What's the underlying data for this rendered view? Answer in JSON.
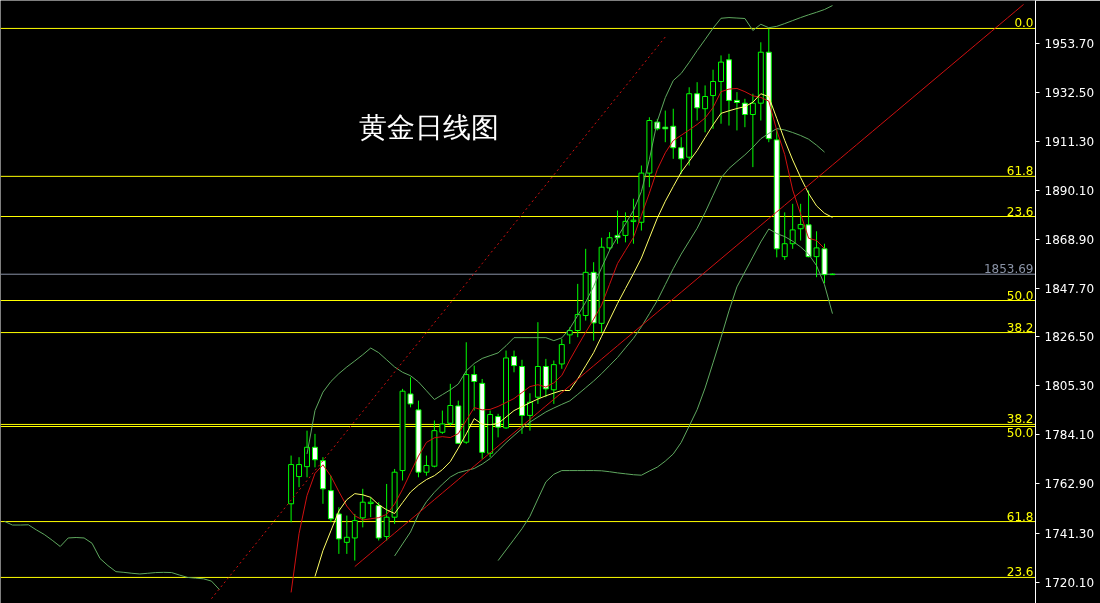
{
  "chart_data": {
    "type": "candlestick",
    "title": "黄金日线图",
    "color": "#00ff00",
    "categories": [
      null,
      null,
      null,
      null,
      null,
      null,
      null,
      null,
      null,
      null,
      null,
      null,
      null,
      null,
      null,
      null,
      null,
      null,
      null,
      null,
      null,
      null,
      null,
      null,
      null,
      null,
      null,
      null,
      null,
      null,
      null,
      null,
      null,
      null,
      null,
      null,
      null,
      null,
      null,
      null,
      null,
      null,
      null,
      null,
      null,
      null,
      null,
      null,
      null,
      null,
      null,
      null,
      null,
      null,
      null,
      null,
      null,
      null,
      null,
      null,
      null,
      null,
      null,
      null,
      null,
      null,
      null,
      null,
      null,
      null,
      null,
      null,
      null,
      null,
      null,
      null,
      null,
      null,
      null,
      null,
      null,
      null,
      null,
      null,
      null,
      null,
      null,
      null,
      null,
      null,
      null,
      null,
      null,
      null,
      null,
      null,
      null,
      null,
      null,
      null,
      null,
      null,
      null,
      null,
      null,
      null,
      null,
      null,
      null,
      null,
      null,
      null,
      null,
      null,
      null,
      null,
      null,
      null,
      null,
      null,
      null,
      null,
      null,
      null,
      null,
      null,
      null,
      null,
      null,
      null
    ],
    "ohlc": [
      null,
      null,
      null,
      null,
      null,
      null,
      null,
      null,
      null,
      null,
      null,
      null,
      null,
      null,
      null,
      null,
      null,
      null,
      null,
      null,
      null,
      null,
      null,
      null,
      null,
      null,
      null,
      null,
      null,
      null,
      null,
      null,
      null,
      null,
      null,
      null,
      [
        1754.2,
        1775.1,
        1746.2,
        1771.2
      ],
      [
        1766.0,
        1774.4,
        1761.4,
        1771.2
      ],
      [
        1770.3,
        1785.9,
        1765.7,
        1778.7
      ],
      [
        1778.7,
        1784.5,
        1770.0,
        1773.3
      ],
      [
        1772.9,
        1774.4,
        1754.2,
        1760.7
      ],
      [
        1759.9,
        1766.4,
        1746.2,
        1747.7
      ],
      [
        1749.8,
        1752.7,
        1732.5,
        1739.0
      ],
      [
        1737.5,
        1749.1,
        1732.5,
        1739.7
      ],
      [
        1739.4,
        1749.8,
        1729.6,
        1746.9
      ],
      [
        1748.1,
        1760.7,
        1744.0,
        1754.9
      ],
      [
        1754.3,
        1757.0,
        1748.4,
        1754.9
      ],
      [
        1753.4,
        1754.9,
        1738.3,
        1739.4
      ],
      [
        1740.0,
        1762.8,
        1738.3,
        1748.4
      ],
      [
        1748.4,
        1769.3,
        1745.5,
        1767.9
      ],
      [
        1768.6,
        1804.0,
        1764.3,
        1803.0
      ],
      [
        1801.8,
        1809.0,
        1796.0,
        1797.5
      ],
      [
        1794.9,
        1798.9,
        1765.7,
        1767.9
      ],
      [
        1767.9,
        1775.1,
        1766.4,
        1770.8
      ],
      [
        1770.5,
        1790.3,
        1770.0,
        1785.9
      ],
      [
        1785.2,
        1794.6,
        1784.5,
        1788.8
      ],
      [
        1789.1,
        1806.2,
        1788.1,
        1796.8
      ],
      [
        1796.6,
        1798.9,
        1780.2,
        1780.4
      ],
      [
        1780.9,
        1824.2,
        1780.2,
        1810.2
      ],
      [
        1810.2,
        1814.1,
        1794.6,
        1807.2
      ],
      [
        1806.4,
        1808.3,
        1773.7,
        1776.5
      ],
      [
        1776.1,
        1794.6,
        1774.4,
        1792.9
      ],
      [
        1792.0,
        1793.2,
        1783.0,
        1787.4
      ],
      [
        1787.1,
        1820.6,
        1786.7,
        1817.4
      ],
      [
        1818.0,
        1820.6,
        1811.2,
        1814.1
      ],
      [
        1813.7,
        1816.6,
        1784.5,
        1792.5
      ],
      [
        1792.5,
        1802.1,
        1785.9,
        1798.2
      ],
      [
        1800.4,
        1832.9,
        1797.5,
        1813.7
      ],
      [
        1813.7,
        1817.0,
        1800.4,
        1804.0
      ],
      [
        1803.6,
        1816.3,
        1797.5,
        1814.5
      ],
      [
        1814.8,
        1825.7,
        1812.7,
        1823.2
      ],
      [
        1827.4,
        1830.7,
        1823.5,
        1829.3
      ],
      [
        1829.3,
        1849.5,
        1826.4,
        1836.2
      ],
      [
        1835.8,
        1864.7,
        1833.6,
        1854.5
      ],
      [
        1854.5,
        1858.9,
        1824.9,
        1832.6
      ],
      [
        1832.4,
        1869.5,
        1828.5,
        1865.4
      ],
      [
        1865.1,
        1871.9,
        1863.9,
        1869.5
      ],
      [
        1870.5,
        1881.3,
        1866.9,
        1869.5
      ],
      [
        1870.5,
        1880.5,
        1867.5,
        1876.6
      ],
      [
        1876.5,
        1886.4,
        1866.9,
        1877.1
      ],
      [
        1876.2,
        1900.8,
        1872.6,
        1897.5
      ],
      [
        1897.5,
        1921.7,
        1891.4,
        1920.3
      ],
      [
        1919.6,
        1921.0,
        1916.0,
        1916.7
      ],
      [
        1917.4,
        1924.6,
        1910.9,
        1916.7
      ],
      [
        1917.8,
        1925.4,
        1903.7,
        1908.5
      ],
      [
        1908.5,
        1913.1,
        1897.2,
        1903.7
      ],
      [
        1904.4,
        1934.7,
        1900.8,
        1931.9
      ],
      [
        1931.9,
        1936.9,
        1920.3,
        1925.8
      ],
      [
        1925.4,
        1935.5,
        1915.2,
        1930.7
      ],
      [
        1931.1,
        1942.3,
        1916.7,
        1937.2
      ],
      [
        1937.2,
        1948.5,
        1918.9,
        1945.6
      ],
      [
        1946.6,
        1949.2,
        1918.1,
        1929.0
      ],
      [
        1929.0,
        1932.6,
        1916.0,
        1928.1
      ],
      [
        1927.8,
        1929.7,
        1917.4,
        1922.9
      ],
      [
        1922.9,
        1931.9,
        1900.1,
        1927.8
      ],
      [
        1927.8,
        1954.2,
        1920.3,
        1949.9
      ],
      [
        1949.9,
        1960.0,
        1910.9,
        1912.4
      ],
      [
        1911.9,
        1916.8,
        1861.0,
        1864.7
      ],
      [
        1861.3,
        1880.5,
        1859.9,
        1866.9
      ],
      [
        1866.9,
        1884.2,
        1864.7,
        1872.9
      ],
      [
        1873.4,
        1884.2,
        1868.3,
        1875.2
      ],
      [
        1875.1,
        1890.0,
        1861.0,
        1861.3
      ],
      [
        1861.3,
        1872.3,
        1852.4,
        1865.1
      ],
      [
        1864.7,
        1866.9,
        1849.8,
        1853.5
      ],
      [
        1853.5,
        1854.0,
        1853.4,
        1853.69
      ],
      null,
      null,
      null,
      null,
      null,
      null,
      null,
      null,
      null,
      null,
      null,
      null,
      null,
      null,
      null,
      null,
      null,
      null,
      null,
      null,
      null,
      null,
      null,
      null,
      null
    ],
    "series": [
      {
        "type": "line",
        "color": "#5fa85f",
        "values": [
          1746.6,
          1745.0,
          1745.0,
          1745.1,
          1742.9,
          1740.9,
          1738.4,
          1735.7,
          1739.4,
          1739.6,
          1739.4,
          1737.1,
          1730.5,
          1727.4,
          1724.8,
          1724.5,
          1724.1,
          1723.8,
          1724.1,
          1724.4,
          1724.5,
          1724.4,
          1723.3,
          1722.3,
          1722.0,
          1721.7,
          1720.7,
          1717.0,
          null,
          null,
          null,
          null,
          null,
          null,
          null,
          null,
          null,
          null,
          1775.8,
          1794.6,
          1802.6,
          1807.2,
          1810.6,
          1813.5,
          1816.1,
          1818.8,
          1821.7,
          1819.7,
          1816.6,
          1813.5,
          1811.2,
          1809.7,
          1807.0,
          1803.2,
          1799.4,
          1801.5,
          1803.6,
          1806.1,
          1811.8,
          1815.0,
          1817.2,
          1818.4,
          1819.6,
          1822.7,
          1826.2,
          1826.2,
          1826.2,
          1826.2,
          1826.2,
          1824.9,
          1826.1,
          1830.1,
          1835.8,
          1841.6,
          1848.4,
          1856.5,
          1864.0,
          1869.8,
          1875.5,
          1881.3,
          1889.5,
          1903.4,
          1920.0,
          1930.2,
          1937.6,
          1940.7,
          1945.5,
          1950.6,
          1955.4,
          1960.3,
          1964.6,
          1964.9,
          1964.7,
          1964.5,
          1959.3,
          1962.0,
          1960.5,
          1961.1,
          1962.3,
          1963.6,
          1964.9,
          1966.1,
          1967.2,
          1968.4,
          1970.1,
          null,
          null,
          null,
          null,
          null,
          null,
          null,
          null,
          null,
          null,
          null,
          null,
          null,
          null,
          null,
          null,
          null,
          null,
          null,
          null,
          null,
          null,
          null,
          null,
          null
        ]
      },
      {
        "type": "line",
        "color": "#5fa85f",
        "values": [
          null,
          null,
          null,
          null,
          null,
          null,
          null,
          null,
          null,
          null,
          null,
          null,
          null,
          null,
          null,
          null,
          null,
          null,
          null,
          null,
          null,
          null,
          null,
          null,
          null,
          null,
          null,
          null,
          null,
          null,
          null,
          null,
          null,
          null,
          null,
          null,
          null,
          null,
          null,
          null,
          null,
          null,
          null,
          null,
          null,
          null,
          null,
          null,
          null,
          1731.6,
          1736.8,
          1742.0,
          1749.6,
          1755.1,
          1759.2,
          1762.7,
          1765.8,
          1767.7,
          1768.6,
          1769.5,
          1771.4,
          1773.8,
          1777.3,
          1780.7,
          1783.8,
          1786.8,
          1789.6,
          1791.8,
          1794.0,
          1795.7,
          1797.3,
          1798.8,
          1801.6,
          1804.5,
          1807.4,
          1810.6,
          1814.1,
          1817.6,
          1821.8,
          1825.9,
          1830.9,
          1836.6,
          1842.3,
          1849.2,
          1856.1,
          1862.4,
          1868.0,
          1873.6,
          1880.4,
          1887.9,
          1895.4,
          1899.5,
          1902.5,
          1905.4,
          1908.7,
          1912.4,
          1914.7,
          1916.8,
          1916.2,
          1915.1,
          1913.8,
          1912.2,
          1909.6,
          1906.6,
          null,
          null,
          null,
          null,
          null,
          null,
          null,
          null,
          null,
          null,
          null,
          null,
          null,
          null,
          null,
          null,
          null,
          null,
          null,
          null,
          null,
          null,
          null,
          null,
          null,
          null
        ]
      },
      {
        "type": "line",
        "color": "#5fa85f",
        "values": [
          null,
          null,
          null,
          null,
          null,
          null,
          null,
          null,
          null,
          null,
          null,
          null,
          null,
          null,
          null,
          null,
          null,
          null,
          null,
          null,
          null,
          null,
          null,
          null,
          null,
          null,
          null,
          null,
          null,
          null,
          null,
          null,
          null,
          null,
          null,
          null,
          null,
          null,
          null,
          null,
          null,
          null,
          null,
          null,
          null,
          null,
          null,
          null,
          null,
          null,
          null,
          null,
          null,
          null,
          null,
          null,
          null,
          null,
          null,
          null,
          null,
          null,
          1729.6,
          1734.2,
          1738.8,
          1743.4,
          1748.8,
          1756.3,
          1763.7,
          1767.0,
          1768.6,
          1768.6,
          1768.6,
          1768.6,
          1768.6,
          1768.5,
          1768.1,
          1767.6,
          1767.2,
          1766.8,
          1766.6,
          1768.4,
          1770.1,
          1772.7,
          1775.8,
          1780.8,
          1787.9,
          1795.0,
          1804.4,
          1815.3,
          1826.3,
          1837.8,
          1848.2,
          1854.7,
          1861.2,
          1867.7,
          1873.3,
          1871.3,
          1870.0,
          1868.0,
          1865.5,
          1862.4,
          1857.4,
          1849.1,
          1836.6,
          null,
          null,
          null,
          null,
          null,
          null,
          null,
          null,
          null,
          null,
          null,
          null,
          null,
          null,
          null,
          null,
          null,
          null,
          null,
          null,
          null,
          null,
          null,
          null,
          null
        ]
      },
      {
        "type": "line",
        "color": "#d01010",
        "values": [
          null,
          null,
          null,
          null,
          null,
          null,
          null,
          null,
          null,
          null,
          null,
          null,
          null,
          null,
          null,
          null,
          null,
          null,
          null,
          null,
          null,
          null,
          null,
          null,
          null,
          null,
          null,
          null,
          null,
          null,
          null,
          null,
          null,
          null,
          null,
          null,
          1715.8,
          1741.3,
          1757.8,
          1767.4,
          1771.1,
          1766.2,
          1759.5,
          1753.2,
          1749.0,
          1747.2,
          1747.7,
          1748.2,
          1749.6,
          1754.1,
          1760.5,
          1767.7,
          1774.9,
          1780.8,
          1782.8,
          1783.3,
          1782.9,
          1784.6,
          1790.3,
          1795.9,
          1794.9,
          1795.1,
          1796.4,
          1798.1,
          1799.8,
          1802.4,
          1805.0,
          1805.8,
          1804.8,
          1806.6,
          1809.8,
          1816.5,
          1822.6,
          1828.5,
          1834.2,
          1840.3,
          1849.3,
          1858.3,
          1864.0,
          1869.6,
          1879.2,
          1888.8,
          1899.1,
          1906.3,
          1911.6,
          1913.9,
          1916.2,
          1918.6,
          1921.4,
          1925.9,
          1932.8,
          1933.9,
          1934.2,
          1932.8,
          1931.0,
          1930.3,
          1928.7,
          1916.0,
          1905.6,
          1890.2,
          1879.8,
          1869.3,
          1868.3,
          1864.8,
          null,
          null,
          null,
          null,
          null,
          null,
          null,
          null,
          null,
          null,
          null,
          null,
          null,
          null,
          null,
          null,
          null,
          null,
          null,
          null,
          null,
          null,
          null,
          null,
          null,
          null
        ]
      },
      {
        "type": "line",
        "color": "#ffff66",
        "values": [
          null,
          null,
          null,
          null,
          null,
          null,
          null,
          null,
          null,
          null,
          null,
          null,
          null,
          null,
          null,
          null,
          null,
          null,
          null,
          null,
          null,
          null,
          null,
          null,
          null,
          null,
          null,
          null,
          null,
          null,
          null,
          null,
          null,
          null,
          null,
          null,
          null,
          null,
          null,
          1722.7,
          1733.9,
          1742.5,
          1751.1,
          1756.0,
          1758.6,
          1758.1,
          1757.0,
          1753.8,
          1751.6,
          1750.0,
          1754.7,
          1759.3,
          1762.3,
          1764.7,
          1766.4,
          1769.0,
          1772.5,
          1778.3,
          1784.5,
          1791.1,
          1788.7,
          1788.5,
          1789.0,
          1791.8,
          1794.6,
          1796.3,
          1798.0,
          1799.6,
          1801.0,
          1802.2,
          1803.3,
          1803.3,
          1808.3,
          1814.0,
          1819.7,
          1826.8,
          1833.9,
          1841.0,
          1847.5,
          1853.9,
          1860.7,
          1869.4,
          1878.0,
          1885.3,
          1891.7,
          1897.9,
          1902.6,
          1907.3,
          1912.9,
          1918.4,
          1923.4,
          1924.5,
          1925.5,
          1926.3,
          1928.2,
          1931.9,
          1930.6,
          1921.2,
          1911.7,
          1903.2,
          1895.6,
          1888.7,
          1883.3,
          1880.1,
          1878.3,
          null,
          null,
          null,
          null,
          null,
          null,
          null,
          null,
          null,
          null,
          null,
          null,
          null,
          null,
          null,
          null,
          null,
          null,
          null,
          null,
          null,
          null,
          null,
          null,
          null
        ]
      },
      {
        "type": "line",
        "color": "#d01010",
        "values": [
          null,
          null,
          null,
          null,
          null,
          null,
          null,
          null,
          null,
          null,
          null,
          null,
          null,
          null,
          null,
          null,
          null,
          null,
          null,
          null,
          null,
          null,
          null,
          null,
          null,
          null,
          null,
          null,
          null,
          null,
          null,
          null,
          null,
          null,
          null,
          null,
          null,
          null,
          null,
          null,
          null,
          null,
          null,
          null,
          1727.0,
          1729.9,
          1732.8,
          1735.7,
          1738.6,
          1741.5,
          1744.4,
          1747.3,
          1750.2,
          1753.1,
          1756.0,
          1758.9,
          1761.8,
          1764.7,
          1767.6,
          1770.5,
          1773.4,
          1776.3,
          1779.2,
          1782.1,
          1785.0,
          1787.9,
          1790.8,
          1793.7,
          1796.6,
          1799.5,
          1802.4,
          1805.3,
          1808.2,
          1811.1,
          1814.0,
          1816.9,
          1819.8,
          1822.7,
          1825.6,
          1828.5,
          1831.4,
          1834.3,
          1837.2,
          1840.1,
          1843.0,
          1845.9,
          1848.8,
          1851.7,
          1854.6,
          1857.5,
          1860.4,
          1863.3,
          1866.2,
          1869.1,
          1872.0,
          1874.9,
          1877.8,
          1880.7,
          1883.6,
          1886.5,
          1889.4,
          1892.3,
          1895.2,
          1898.1,
          1901.0,
          1903.9,
          1906.8,
          1909.7,
          1912.6,
          1915.5,
          1918.4,
          1921.3,
          1924.2,
          1927.1,
          1930.0,
          1932.9,
          1935.8,
          1938.7,
          1941.6,
          1944.5,
          1947.4,
          1950.3,
          1953.2,
          1956.1,
          1959.0,
          1961.9,
          1964.8,
          1967.7,
          1970.6,
          null
        ]
      },
      {
        "type": "line",
        "color": "#d01010",
        "line_style": "dotted",
        "values": [
          null,
          null,
          null,
          null,
          null,
          null,
          null,
          null,
          null,
          null,
          null,
          null,
          null,
          null,
          null,
          null,
          null,
          null,
          null,
          null,
          null,
          null,
          null,
          null,
          null,
          null,
          1713.1,
          1717.4,
          1721.6,
          1725.9,
          1730.2,
          1734.5,
          1738.7,
          1743.0,
          1747.3,
          1751.5,
          1755.8,
          1760.1,
          1764.3,
          1768.6,
          1772.9,
          1777.2,
          1781.4,
          1785.7,
          1790.0,
          1794.2,
          1798.5,
          1802.8,
          1807.0,
          1811.3,
          1815.6,
          1819.9,
          1824.1,
          1828.4,
          1832.7,
          1836.9,
          1841.2,
          1845.5,
          1849.7,
          1854.0,
          1858.3,
          1862.6,
          1866.8,
          1871.1,
          1875.4,
          1879.6,
          1883.9,
          1888.2,
          1892.4,
          1896.7,
          1901.0,
          1905.3,
          1909.5,
          1913.8,
          1918.1,
          1922.3,
          1926.6,
          1930.9,
          1935.1,
          1939.4,
          1943.7,
          1948.0,
          1952.2,
          1956.5,
          null,
          null,
          null,
          null,
          null,
          null,
          null,
          null,
          null,
          null,
          null,
          null,
          null,
          null,
          null,
          null,
          null,
          null,
          null,
          null,
          null,
          null,
          null,
          null,
          null,
          null,
          null,
          null,
          null,
          null,
          null,
          null,
          null,
          null,
          null,
          null,
          null,
          null,
          null,
          null,
          null,
          null,
          null,
          null,
          null,
          null
        ]
      }
    ],
    "ylim": [
      1711.0,
      1972.3
    ],
    "yticks": [
      {
        "value": 1720.1,
        "label": "1720.10"
      },
      {
        "value": 1741.3,
        "label": "1741.30"
      },
      {
        "value": 1762.9,
        "label": "1762.90"
      },
      {
        "value": 1784.1,
        "label": "1784.10"
      },
      {
        "value": 1805.3,
        "label": "1805.30"
      },
      {
        "value": 1826.5,
        "label": "1826.50"
      },
      {
        "value": 1847.7,
        "label": "1847.70"
      },
      {
        "value": 1868.9,
        "label": "1868.90"
      },
      {
        "value": 1890.1,
        "label": "1890.10"
      },
      {
        "value": 1911.3,
        "label": "1911.30"
      },
      {
        "value": 1932.5,
        "label": "1932.50"
      },
      {
        "value": 1953.7,
        "label": "1953.70"
      }
    ],
    "ref_lines": [
      {
        "axis": "y",
        "value": 1960.2,
        "color": "#ffff00"
      },
      {
        "axis": "y",
        "value": 1896.1,
        "color": "#ffff00"
      },
      {
        "axis": "y",
        "value": 1878.7,
        "color": "#ffff00"
      },
      {
        "axis": "y",
        "value": 1853.69,
        "label": "1853.69",
        "color": "#8a93a6"
      },
      {
        "axis": "y",
        "value": 1842.3,
        "color": "#ffff00"
      },
      {
        "axis": "y",
        "value": 1828.4,
        "color": "#ffff00"
      },
      {
        "axis": "y",
        "value": 1788.6,
        "color": "#ffff00"
      },
      {
        "axis": "y",
        "value": 1787.7,
        "color": "#ffff00"
      },
      {
        "axis": "y",
        "value": 1746.5,
        "color": "#ffff00"
      },
      {
        "axis": "y",
        "value": 1722.3,
        "color": "#ffff00"
      }
    ],
    "annotations": [
      {
        "text": "0.0",
        "y": 1960.2
      },
      {
        "text": "61.8",
        "y": 1896.1
      },
      {
        "text": "23.6",
        "y": 1878.7
      },
      {
        "text": "50.0",
        "y": 1842.3
      },
      {
        "text": "38.2",
        "y": 1828.4
      },
      {
        "text": "38.2",
        "y": 1788.6
      },
      {
        "text": "50.0",
        "y": 1787.7
      },
      {
        "text": "61.8",
        "y": 1746.5
      },
      {
        "text": "23.6",
        "y": 1722.3
      }
    ],
    "tick_labels": "y"
  }
}
